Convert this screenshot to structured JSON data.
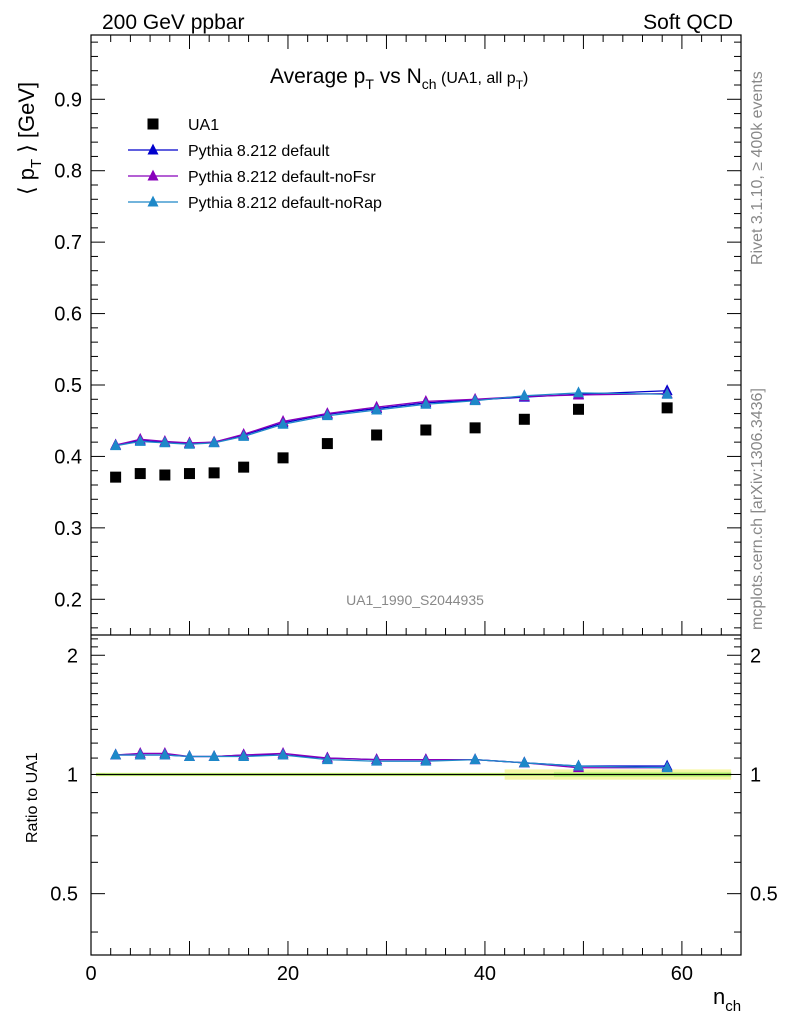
{
  "header": {
    "left": "200 GeV ppbar",
    "right": "Soft QCD"
  },
  "side": {
    "rivet": "Rivet 3.1.10, ≥ 400k events",
    "mcplots": "mcplots.cern.ch [arXiv:1306.3436]"
  },
  "watermark": "UA1_1990_S2044935",
  "chart_data": {
    "type": "scatter",
    "title": {
      "main": "Average p",
      "main_sub": "T",
      "mid": " vs N",
      "mid_sub": "ch",
      "paren_open": " (UA1, all p",
      "paren_sub": "T",
      "paren_close": ")"
    },
    "ylabel": {
      "open": "⟨ p",
      "sub": "T",
      "close": " ⟩ [GeV]"
    },
    "xlabel": {
      "main": "n",
      "sub": "ch"
    },
    "ratio_ylabel": "Ratio to UA1",
    "xlim": [
      0,
      66
    ],
    "ylim": [
      0.15,
      0.99
    ],
    "ratio_ylim": [
      0.35,
      2.25
    ],
    "x_ticks": [
      0,
      20,
      40,
      60
    ],
    "x_tick_labels": [
      "0",
      "20",
      "40",
      "60"
    ],
    "y_ticks": [
      0.2,
      0.3,
      0.4,
      0.5,
      0.6,
      0.7,
      0.8,
      0.9
    ],
    "y_tick_labels": [
      "0.2",
      "0.3",
      "0.4",
      "0.5",
      "0.6",
      "0.7",
      "0.8",
      "0.9"
    ],
    "ratio_ticks": [
      0.5,
      1,
      2
    ],
    "ratio_tick_labels": [
      "0.5",
      "1",
      "2"
    ],
    "legend_position": "top-left",
    "series": [
      {
        "name": "UA1",
        "marker": "square",
        "color": "#000000",
        "x": [
          2.5,
          5,
          7.5,
          10,
          12.5,
          15.5,
          19.5,
          24,
          29,
          34,
          39,
          44,
          49.5,
          58.5
        ],
        "y": [
          0.371,
          0.376,
          0.374,
          0.376,
          0.377,
          0.385,
          0.398,
          0.418,
          0.43,
          0.437,
          0.44,
          0.452,
          0.466,
          0.468
        ]
      },
      {
        "name": "Pythia 8.212 default",
        "marker": "triangle",
        "color": "#0000cc",
        "x": [
          2.5,
          5,
          7.5,
          10,
          12.5,
          15.5,
          19.5,
          24,
          29,
          34,
          39,
          44,
          49.5,
          58.5
        ],
        "y": [
          0.416,
          0.422,
          0.42,
          0.418,
          0.42,
          0.43,
          0.447,
          0.459,
          0.467,
          0.475,
          0.479,
          0.483,
          0.487,
          0.492
        ],
        "ratio": [
          1.12,
          1.12,
          1.12,
          1.11,
          1.11,
          1.12,
          1.12,
          1.1,
          1.09,
          1.09,
          1.09,
          1.07,
          1.05,
          1.05
        ]
      },
      {
        "name": "Pythia 8.212 default-noFsr",
        "marker": "triangle",
        "color": "#8800bb",
        "x": [
          2.5,
          5,
          7.5,
          10,
          12.5,
          15.5,
          19.5,
          24,
          29,
          34,
          39,
          44,
          49.5,
          58.5
        ],
        "y": [
          0.416,
          0.424,
          0.421,
          0.419,
          0.42,
          0.431,
          0.449,
          0.46,
          0.469,
          0.477,
          0.48,
          0.484,
          0.486,
          0.488
        ],
        "ratio": [
          1.12,
          1.13,
          1.13,
          1.11,
          1.11,
          1.12,
          1.13,
          1.1,
          1.09,
          1.09,
          1.09,
          1.07,
          1.04,
          1.04
        ]
      },
      {
        "name": "Pythia 8.212 default-noRap",
        "marker": "triangle",
        "color": "#1e88c8",
        "x": [
          2.5,
          5,
          7.5,
          10,
          12.5,
          15.5,
          19.5,
          24,
          29,
          34,
          39,
          44,
          49.5,
          58.5
        ],
        "y": [
          0.415,
          0.421,
          0.419,
          0.417,
          0.419,
          0.428,
          0.445,
          0.457,
          0.465,
          0.473,
          0.478,
          0.485,
          0.489,
          0.487
        ],
        "ratio": [
          1.12,
          1.12,
          1.12,
          1.11,
          1.11,
          1.11,
          1.12,
          1.09,
          1.08,
          1.08,
          1.09,
          1.07,
          1.05,
          1.04
        ]
      }
    ]
  }
}
